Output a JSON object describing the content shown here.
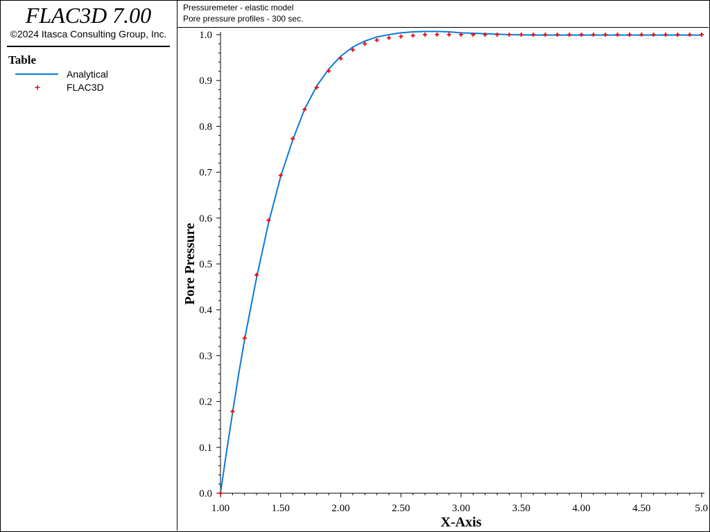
{
  "app": {
    "title": "FLAC3D 7.00",
    "copyright": "©2024 Itasca Consulting Group, Inc."
  },
  "legend": {
    "title": "Table",
    "items": [
      {
        "label": "Analytical",
        "kind": "line",
        "color": "#0a79d6"
      },
      {
        "label": "FLAC3D",
        "kind": "plus",
        "color": "#e0181b"
      }
    ]
  },
  "header": {
    "line1": "Pressuremeter - elastic model",
    "line2": "Pore pressure profiles - 300 sec."
  },
  "chart_data": {
    "type": "line",
    "xlabel": "X-Axis",
    "ylabel": "Pore Pressure",
    "xlim": [
      1.0,
      5.0
    ],
    "ylim": [
      0.0,
      1.0
    ],
    "x_ticks": [
      "1.00",
      "1.50",
      "2.00",
      "2.50",
      "3.00",
      "3.50",
      "4.00",
      "4.50",
      "5.0"
    ],
    "y_ticks": [
      "0.0",
      "0.1",
      "0.2",
      "0.3",
      "0.4",
      "0.5",
      "0.6",
      "0.7",
      "0.8",
      "0.9",
      "1.0"
    ],
    "grid": false,
    "series": [
      {
        "name": "Analytical",
        "style": "line",
        "color": "#0a79d6",
        "x": [
          1.0,
          1.05,
          1.1,
          1.15,
          1.2,
          1.3,
          1.4,
          1.5,
          1.6,
          1.7,
          1.8,
          1.9,
          2.0,
          2.1,
          2.2,
          2.3,
          2.4,
          2.5,
          2.6,
          2.7,
          2.8,
          2.9,
          3.0,
          3.2,
          3.4,
          3.6,
          3.8,
          4.0,
          4.5,
          5.0
        ],
        "y": [
          0.0,
          0.09,
          0.175,
          0.258,
          0.335,
          0.47,
          0.59,
          0.69,
          0.77,
          0.838,
          0.888,
          0.925,
          0.953,
          0.973,
          0.986,
          0.995,
          1.0,
          1.004,
          1.006,
          1.007,
          1.007,
          1.006,
          1.004,
          1.002,
          1.0,
          0.999,
          0.999,
          0.999,
          0.999,
          0.999
        ]
      },
      {
        "name": "FLAC3D",
        "style": "marker-plus",
        "color": "#e0181b",
        "x": [
          1.0,
          1.1,
          1.2,
          1.3,
          1.4,
          1.5,
          1.6,
          1.7,
          1.8,
          1.9,
          2.0,
          2.1,
          2.2,
          2.3,
          2.4,
          2.5,
          2.6,
          2.7,
          2.8,
          2.9,
          3.0,
          3.1,
          3.2,
          3.3,
          3.4,
          3.5,
          3.6,
          3.7,
          3.8,
          3.9,
          4.0,
          4.1,
          4.2,
          4.3,
          4.4,
          4.5,
          4.6,
          4.7,
          4.8,
          4.9,
          5.0
        ],
        "y": [
          0.0,
          0.178,
          0.338,
          0.476,
          0.595,
          0.693,
          0.773,
          0.837,
          0.885,
          0.921,
          0.948,
          0.967,
          0.98,
          0.988,
          0.993,
          0.996,
          0.998,
          1.0,
          1.0,
          1.0,
          1.0,
          1.0,
          1.0,
          1.0,
          1.0,
          1.0,
          1.0,
          1.0,
          1.0,
          1.0,
          1.0,
          1.0,
          1.0,
          1.0,
          1.0,
          1.0,
          1.0,
          1.0,
          1.0,
          1.0,
          1.0
        ]
      }
    ]
  }
}
